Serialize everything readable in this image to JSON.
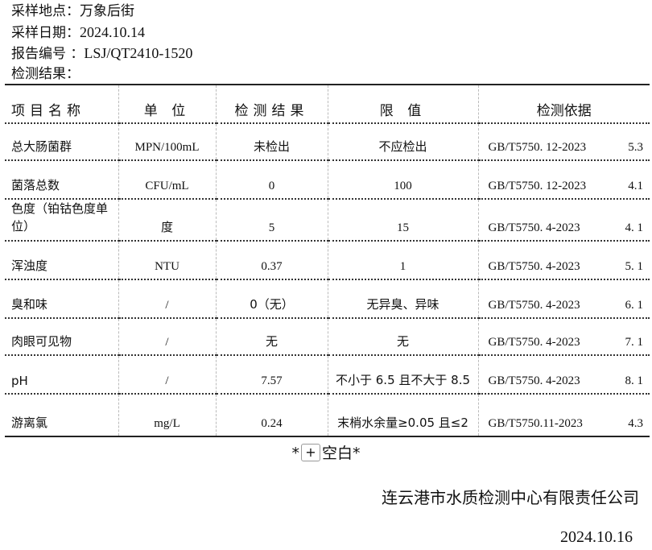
{
  "meta": {
    "location_label": "采样地点：",
    "location": "万象后街",
    "date_label": "采样日期：",
    "date": "2024.10.14",
    "report_label": "报告编号 ：",
    "report_no": "LSJ/QT2410-1520",
    "result_label": "检测结果："
  },
  "table": {
    "headers": [
      "项目名称",
      "单 位",
      "检测结果",
      "限 值",
      "检测依据"
    ],
    "rows": [
      {
        "item": "总大肠菌群",
        "unit": "MPN/100mL",
        "result": "未检出",
        "limit": "不应检出",
        "std": "GB/T5750. 12-2023",
        "clause": "5.3"
      },
      {
        "item": "菌落总数",
        "unit": "CFU/mL",
        "result": "0",
        "limit": "100",
        "std": "GB/T5750. 12-2023",
        "clause": "4.1"
      },
      {
        "item": "色度（铂钴色度单位）",
        "unit": "度",
        "result": "5",
        "limit": "15",
        "std": "GB/T5750. 4-2023",
        "clause": "4. 1"
      },
      {
        "item": "浑浊度",
        "unit": "NTU",
        "result": "0.37",
        "limit": "1",
        "std": "GB/T5750. 4-2023",
        "clause": "5. 1"
      },
      {
        "item": "臭和味",
        "unit": "/",
        "result": "0（无）",
        "limit": "无异臭、异味",
        "std": "GB/T5750. 4-2023",
        "clause": "6. 1"
      },
      {
        "item": "肉眼可见物",
        "unit": "/",
        "result": "无",
        "limit": "无",
        "std": "GB/T5750. 4-2023",
        "clause": "7. 1"
      },
      {
        "item": "pH",
        "unit": "/",
        "result": "7.57",
        "limit": "不小于 6.5 且不大于 8.5",
        "std": "GB/T5750. 4-2023",
        "clause": "8. 1"
      },
      {
        "item": "游离氯",
        "unit": "mg/L",
        "result": "0.24",
        "limit": "末梢水余量≥0.05 且≤2",
        "std": "GB/T5750.11-2023",
        "clause": "4.3"
      }
    ]
  },
  "blank": {
    "left": "*",
    "plus": "+",
    "right": "空白*"
  },
  "footer": {
    "company": "连云港市水质检测中心有限责任公司",
    "date": "2024.10.16"
  }
}
